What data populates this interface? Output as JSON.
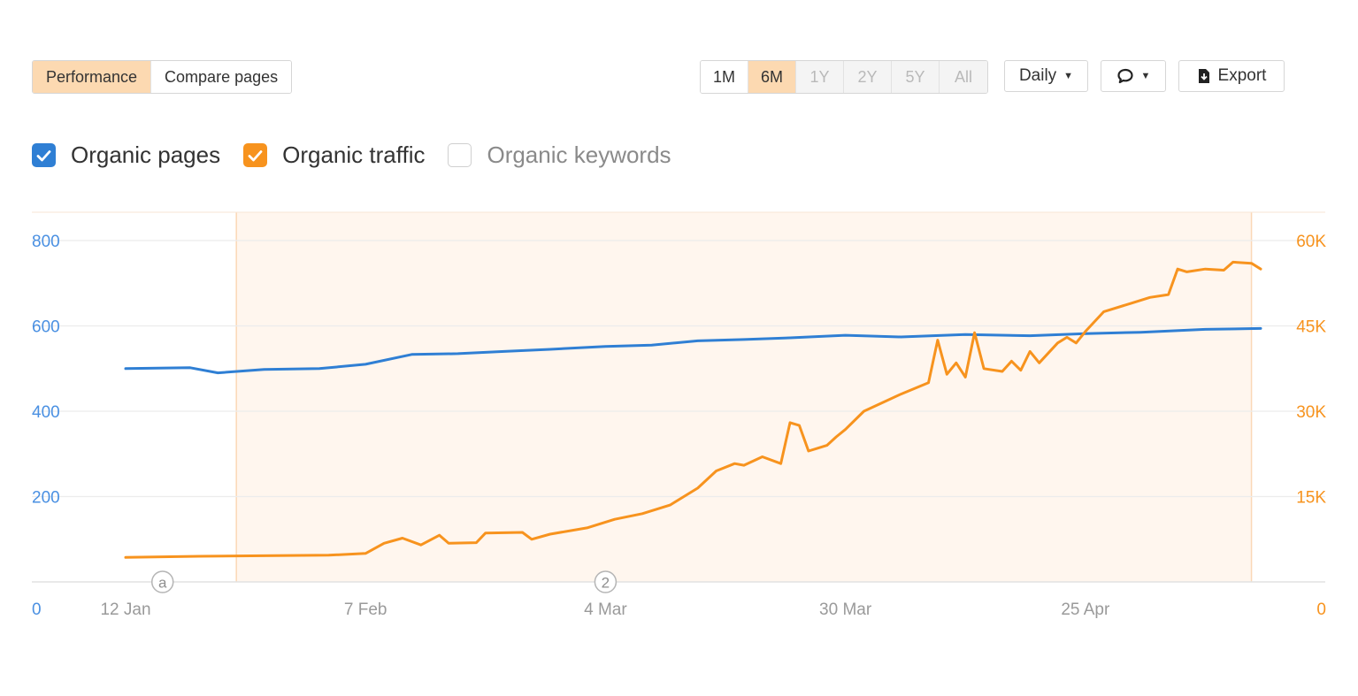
{
  "toolbar": {
    "view_tabs": [
      {
        "label": "Performance",
        "active": true
      },
      {
        "label": "Compare pages",
        "active": false
      }
    ],
    "ranges": [
      {
        "label": "1M",
        "state": "normal"
      },
      {
        "label": "6M",
        "state": "active"
      },
      {
        "label": "1Y",
        "state": "disabled"
      },
      {
        "label": "2Y",
        "state": "disabled"
      },
      {
        "label": "5Y",
        "state": "disabled"
      },
      {
        "label": "All",
        "state": "disabled"
      }
    ],
    "interval_label": "Daily",
    "comment_icon": "speech-bubble-icon",
    "export_label": "Export",
    "export_icon": "download-icon"
  },
  "legend": [
    {
      "label": "Organic pages",
      "checked": true,
      "color": "#2f7fd4"
    },
    {
      "label": "Organic traffic",
      "checked": true,
      "color": "#f7931e"
    },
    {
      "label": "Organic keywords",
      "checked": false,
      "color": "#cfcfcf"
    }
  ],
  "chart_data": {
    "type": "line",
    "x_tick_labels": [
      "12 Jan",
      "7 Feb",
      "4 Mar",
      "30 Mar",
      "25 Apr"
    ],
    "y_left": {
      "ticks": [
        "0",
        "200",
        "400",
        "600",
        "800"
      ],
      "range": [
        0,
        800
      ],
      "color": "#4a90e2"
    },
    "y_right": {
      "ticks": [
        "0",
        "15K",
        "30K",
        "45K",
        "60K"
      ],
      "range": [
        0,
        60000
      ],
      "color": "#f7931e"
    },
    "grid": true,
    "series": [
      {
        "name": "Organic pages",
        "axis": "left",
        "color": "#2f7fd4",
        "points": [
          [
            "12 Jan",
            500
          ],
          [
            "19 Jan",
            502
          ],
          [
            "22 Jan",
            490
          ],
          [
            "27 Jan",
            498
          ],
          [
            "2 Feb",
            500
          ],
          [
            "7 Feb",
            510
          ],
          [
            "12 Feb",
            533
          ],
          [
            "17 Feb",
            535
          ],
          [
            "22 Feb",
            540
          ],
          [
            "27 Feb",
            545
          ],
          [
            "4 Mar",
            552
          ],
          [
            "9 Mar",
            555
          ],
          [
            "14 Mar",
            565
          ],
          [
            "19 Mar",
            568
          ],
          [
            "24 Mar",
            572
          ],
          [
            "30 Mar",
            578
          ],
          [
            "5 Apr",
            574
          ],
          [
            "12 Apr",
            580
          ],
          [
            "19 Apr",
            577
          ],
          [
            "25 Apr",
            582
          ],
          [
            "1 May",
            585
          ],
          [
            "8 May",
            592
          ],
          [
            "14 May",
            594
          ]
        ]
      },
      {
        "name": "Organic traffic",
        "axis": "right",
        "color": "#f7931e",
        "points": [
          [
            "12 Jan",
            4300
          ],
          [
            "20 Jan",
            4500
          ],
          [
            "27 Jan",
            4600
          ],
          [
            "3 Feb",
            4700
          ],
          [
            "7 Feb",
            5000
          ],
          [
            "9 Feb",
            6800
          ],
          [
            "11 Feb",
            7700
          ],
          [
            "13 Feb",
            6500
          ],
          [
            "15 Feb",
            8200
          ],
          [
            "16 Feb",
            6800
          ],
          [
            "19 Feb",
            6900
          ],
          [
            "20 Feb",
            8600
          ],
          [
            "24 Feb",
            8700
          ],
          [
            "25 Feb",
            7500
          ],
          [
            "27 Feb",
            8400
          ],
          [
            "2 Mar",
            9500
          ],
          [
            "5 Mar",
            11000
          ],
          [
            "8 Mar",
            12000
          ],
          [
            "11 Mar",
            13500
          ],
          [
            "14 Mar",
            16500
          ],
          [
            "16 Mar",
            19500
          ],
          [
            "18 Mar",
            20800
          ],
          [
            "19 Mar",
            20500
          ],
          [
            "21 Mar",
            22000
          ],
          [
            "23 Mar",
            20800
          ],
          [
            "24 Mar",
            28000
          ],
          [
            "25 Mar",
            27500
          ],
          [
            "26 Mar",
            23000
          ],
          [
            "28 Mar",
            24000
          ],
          [
            "29 Mar",
            25500
          ],
          [
            "30 Mar",
            26800
          ],
          [
            "1 Apr",
            30000
          ],
          [
            "3 Apr",
            31500
          ],
          [
            "5 Apr",
            33000
          ],
          [
            "8 Apr",
            35000
          ],
          [
            "9 Apr",
            42500
          ],
          [
            "10 Apr",
            36500
          ],
          [
            "11 Apr",
            38500
          ],
          [
            "12 Apr",
            36000
          ],
          [
            "13 Apr",
            43800
          ],
          [
            "14 Apr",
            37500
          ],
          [
            "16 Apr",
            37000
          ],
          [
            "17 Apr",
            38800
          ],
          [
            "18 Apr",
            37200
          ],
          [
            "19 Apr",
            40500
          ],
          [
            "20 Apr",
            38500
          ],
          [
            "22 Apr",
            42000
          ],
          [
            "23 Apr",
            43000
          ],
          [
            "24 Apr",
            42000
          ],
          [
            "25 Apr",
            44000
          ],
          [
            "27 Apr",
            47500
          ],
          [
            "30 Apr",
            49000
          ],
          [
            "2 May",
            50000
          ],
          [
            "4 May",
            50500
          ],
          [
            "5 May",
            55000
          ],
          [
            "6 May",
            54500
          ],
          [
            "8 May",
            55000
          ],
          [
            "10 May",
            54800
          ],
          [
            "11 May",
            56200
          ],
          [
            "13 May",
            56000
          ],
          [
            "14 May",
            55000
          ]
        ]
      }
    ],
    "annotations": [
      {
        "date": "16 Jan",
        "label": "a"
      },
      {
        "date": "4 Mar",
        "label": "2"
      }
    ],
    "highlighted_range": [
      "24 Jan",
      "13 May"
    ]
  }
}
